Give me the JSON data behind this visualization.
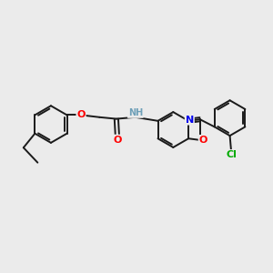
{
  "background_color": "#ebebeb",
  "bond_color": "#1a1a1a",
  "atom_colors": {
    "O": "#ff0000",
    "N": "#0000ee",
    "Cl": "#00aa00",
    "H": "#6fa0b8",
    "C": "#1a1a1a"
  },
  "bond_width": 1.4,
  "font_size": 7.5
}
